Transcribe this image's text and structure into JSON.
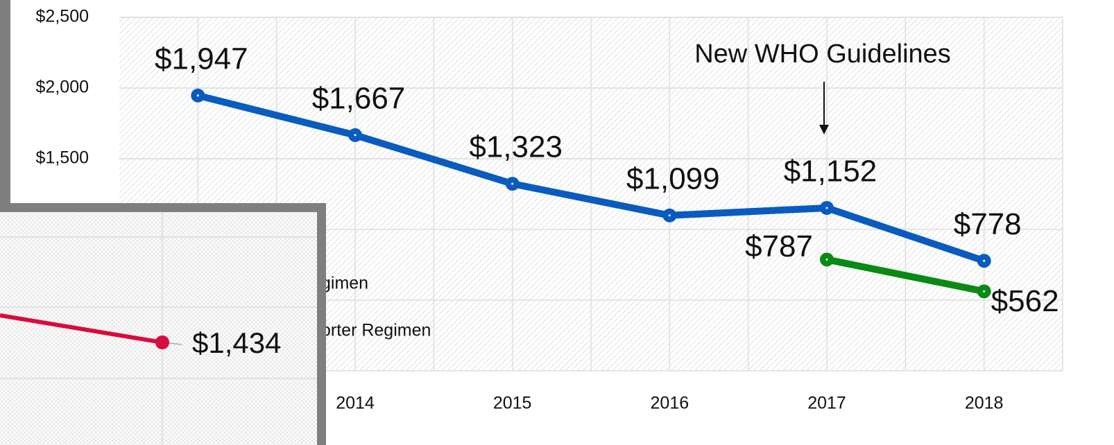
{
  "chart_data": [
    {
      "type": "line",
      "categories": [
        null,
        "2014",
        "2015",
        "2016",
        "2017",
        "2018"
      ],
      "series": [
        {
          "name": "gimen",
          "color": "#0a5bbf",
          "values": [
            1947,
            1667,
            1323,
            1099,
            1152,
            778
          ],
          "value_labels": [
            "$1,947",
            "$1,667",
            "$1,323",
            "$1,099",
            "$1,152",
            "$778"
          ]
        },
        {
          "name": "orter Regimen",
          "color": "#0a8a14",
          "values": [
            null,
            null,
            null,
            null,
            787,
            562
          ],
          "value_labels": [
            null,
            null,
            null,
            null,
            "$787",
            "$562"
          ]
        }
      ],
      "ylim": [
        0,
        2500
      ],
      "yticks": [
        {
          "value": 2500,
          "label": "$2,500"
        },
        {
          "value": 2000,
          "label": "$2,000"
        },
        {
          "value": 1500,
          "label": "$1,500"
        }
      ],
      "annotation": "New WHO Guidelines",
      "grid": true
    },
    {
      "type": "line",
      "series": [
        {
          "color": "#d80c3c",
          "values": [
            1434
          ],
          "value_labels": [
            "$1,434"
          ]
        }
      ]
    }
  ]
}
